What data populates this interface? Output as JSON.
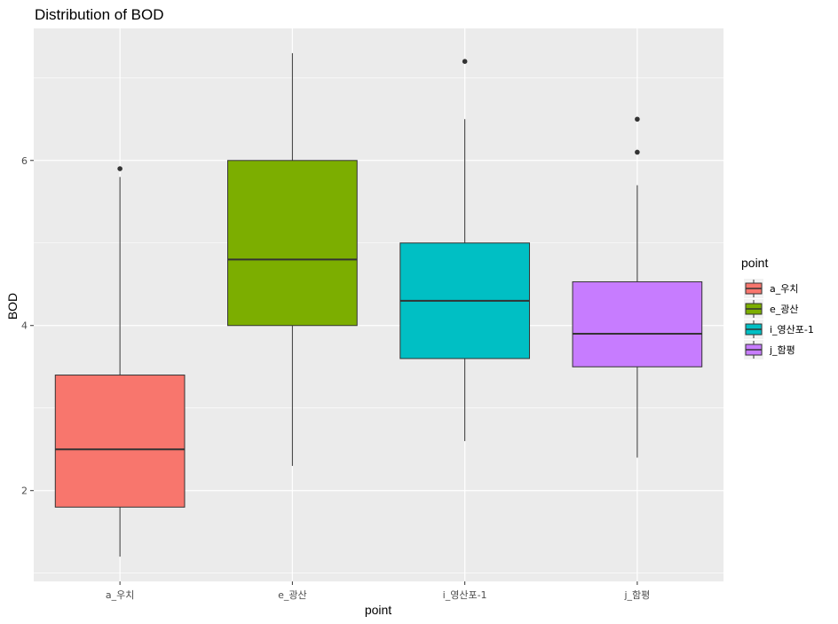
{
  "chart_data": {
    "type": "boxplot",
    "title": "Distribution of BOD",
    "xlabel": "point",
    "ylabel": "BOD",
    "ylim": [
      0.9,
      7.6
    ],
    "yticks": [
      2,
      4,
      6
    ],
    "grid": true,
    "legend_title": "point",
    "legend_position": "right",
    "categories": [
      "a_우치",
      "e_광산",
      "i_영산포-1",
      "j_함평"
    ],
    "boxes": [
      {
        "name": "a_우치",
        "color": "#F8766D",
        "min": 1.2,
        "q1": 1.8,
        "median": 2.5,
        "q3": 3.4,
        "max": 5.8,
        "outliers": [
          5.9
        ]
      },
      {
        "name": "e_광산",
        "color": "#7CAE00",
        "min": 2.3,
        "q1": 4.0,
        "median": 4.8,
        "q3": 6.0,
        "max": 7.3,
        "outliers": []
      },
      {
        "name": "i_영산포-1",
        "color": "#00BFC4",
        "min": 2.6,
        "q1": 3.6,
        "median": 4.3,
        "q3": 5.0,
        "max": 6.5,
        "outliers": [
          7.2
        ]
      },
      {
        "name": "j_함평",
        "color": "#C77CFF",
        "min": 2.4,
        "q1": 3.5,
        "median": 3.9,
        "q3": 4.53,
        "max": 5.7,
        "outliers": [
          6.1,
          6.5
        ]
      }
    ]
  }
}
